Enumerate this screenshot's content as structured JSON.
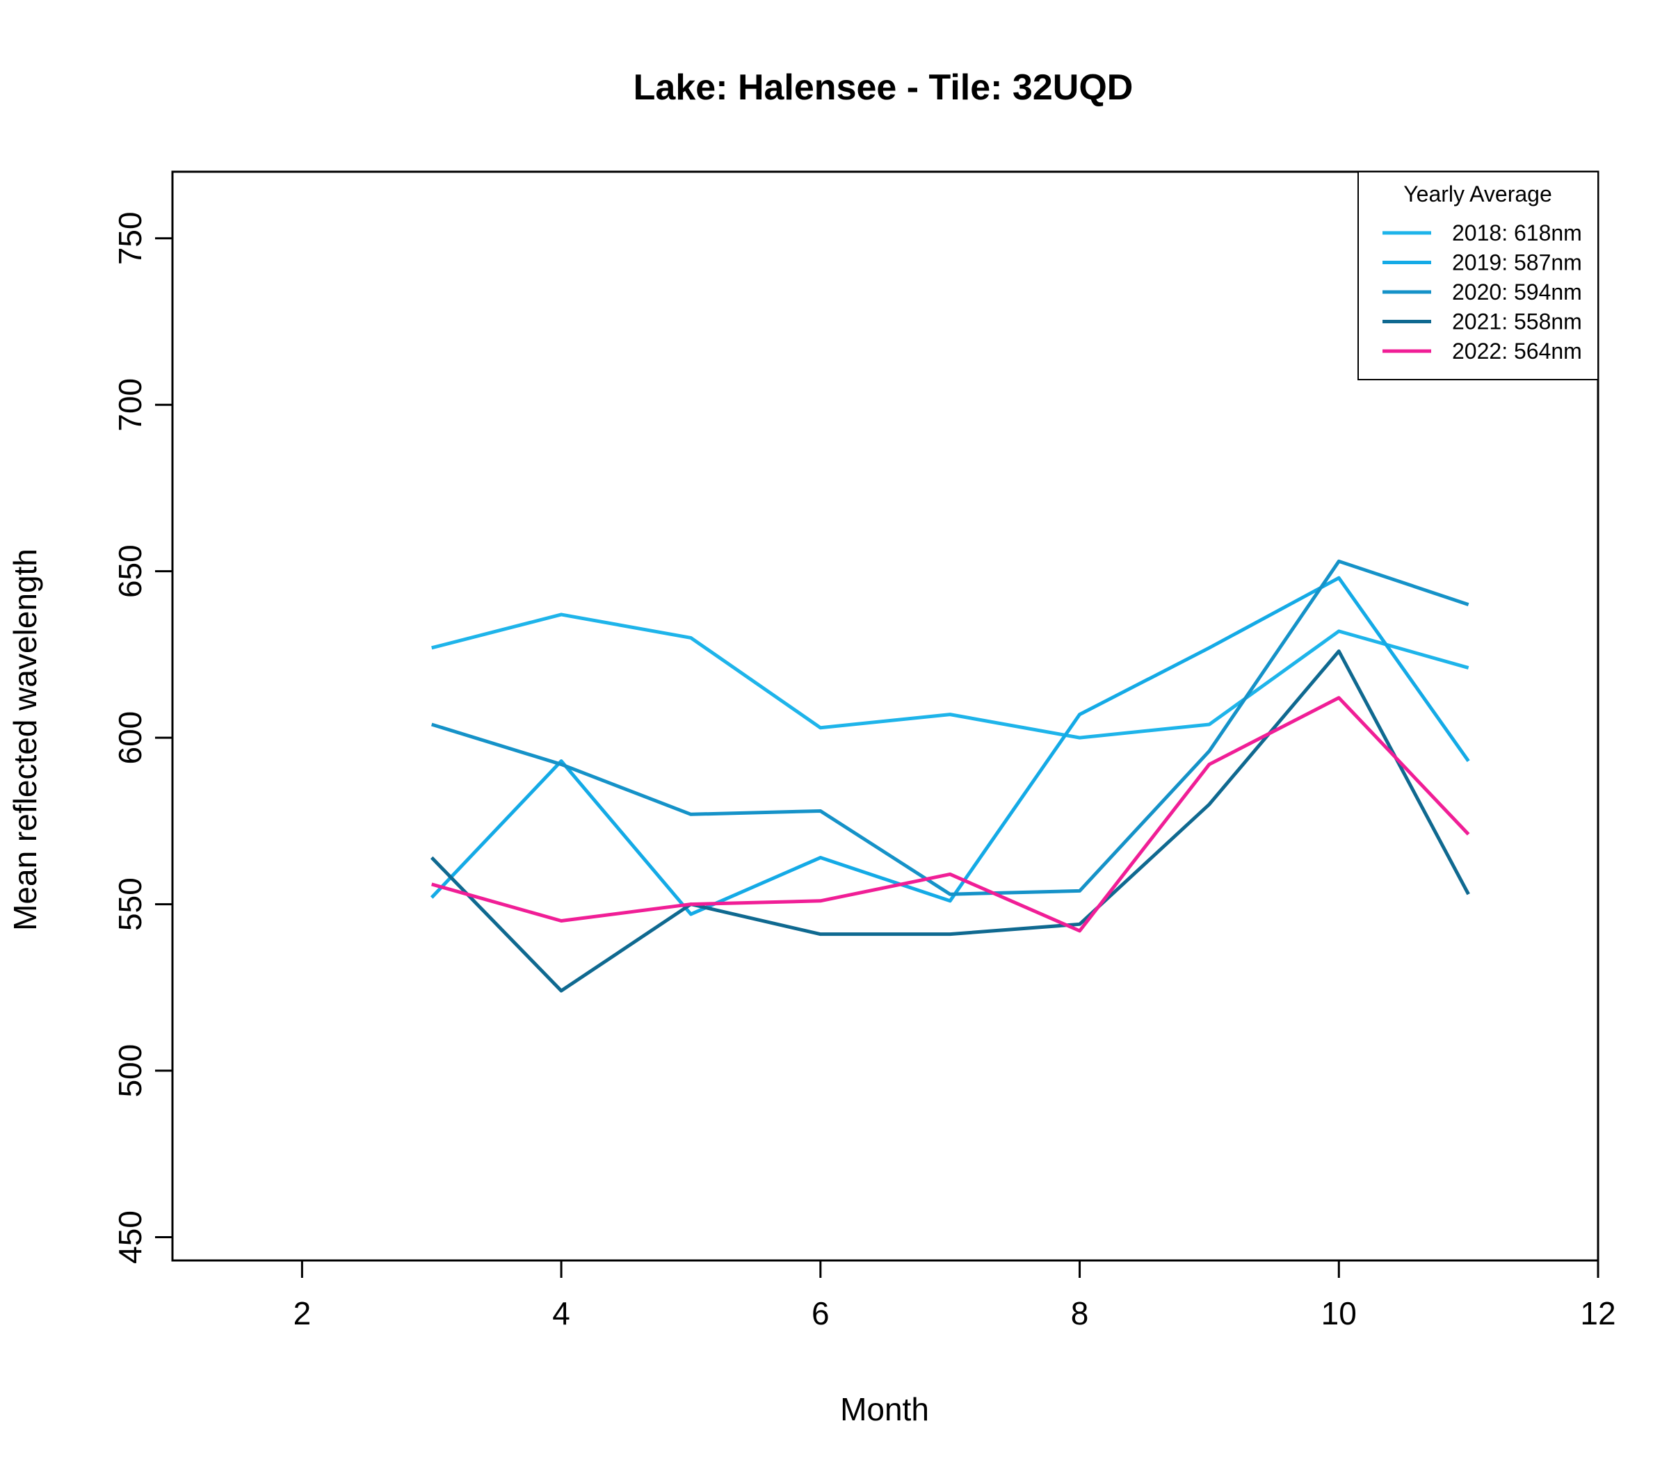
{
  "chart_data": {
    "type": "line",
    "title": "Lake: Halensee  - Tile: 32UQD",
    "xlabel": "Month",
    "ylabel": "Mean reflected wavelength",
    "xlim": [
      1,
      12
    ],
    "ylim": [
      443,
      770
    ],
    "x_ticks": [
      "2",
      "4",
      "6",
      "8",
      "10",
      "12"
    ],
    "y_ticks": [
      "450",
      "500",
      "550",
      "600",
      "650",
      "700",
      "750"
    ],
    "grid": false,
    "legend": {
      "title": "Yearly Average",
      "placement": "top-right"
    },
    "x": [
      3,
      4,
      5,
      6,
      7,
      8,
      9,
      10,
      11
    ],
    "series": [
      {
        "name": "2018: 618nm",
        "color": "#1EB4EA",
        "values": [
          627,
          637,
          630,
          603,
          607,
          600,
          604,
          632,
          621
        ]
      },
      {
        "name": "2019: 587nm",
        "color": "#14AAE6",
        "values": [
          552,
          593,
          547,
          564,
          551,
          607,
          627,
          648,
          593
        ]
      },
      {
        "name": "2020: 594nm",
        "color": "#1592C8",
        "values": [
          604,
          592,
          577,
          578,
          553,
          554,
          596,
          653,
          640
        ]
      },
      {
        "name": "2021: 558nm",
        "color": "#0F6990",
        "values": [
          564,
          524,
          550,
          541,
          541,
          544,
          580,
          626,
          553
        ]
      },
      {
        "name": "2022: 564nm",
        "color": "#F01E96",
        "values": [
          556,
          545,
          550,
          551,
          559,
          542,
          592,
          612,
          571
        ]
      }
    ]
  }
}
